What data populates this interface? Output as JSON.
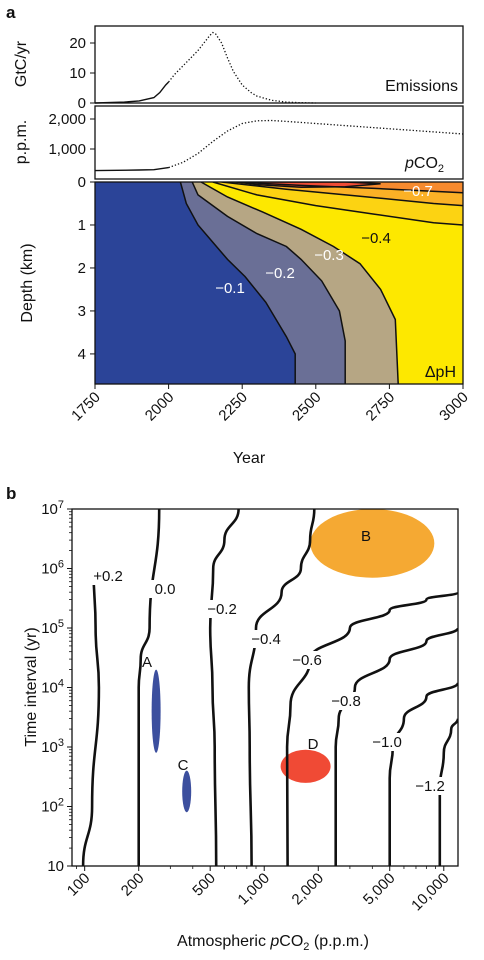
{
  "panel_a": {
    "letter": "a",
    "emissions": {
      "ylabel": "GtC/yr",
      "yticks": [
        "0",
        "10",
        "20"
      ],
      "label": "Emissions"
    },
    "pco2": {
      "ylabel": "p.p.m.",
      "yticks": [
        "1,000",
        "2,000"
      ],
      "label_italic": "p",
      "label_rest": "CO",
      "label_sub": "2"
    },
    "depth": {
      "ylabel": "Depth (km)",
      "yticks": [
        "0",
        "1",
        "2",
        "3",
        "4"
      ],
      "label": "ΔpH",
      "contour_labels": [
        "−0.7",
        "−0.4",
        "−0.3",
        "−0.2",
        "−0.1"
      ]
    },
    "xticks": [
      "1750",
      "2000",
      "2250",
      "2500",
      "2750",
      "3000"
    ],
    "xlabel": "Year"
  },
  "panel_b": {
    "letter": "b",
    "ylabel": "Time interval (yr)",
    "ytick_base": "10",
    "ytick_exponents": [
      "",
      "2",
      "3",
      "4",
      "5",
      "6",
      "7"
    ],
    "xticks": [
      "100",
      "200",
      "500",
      "1,000",
      "2,000",
      "5,000",
      "10,000"
    ],
    "xlabel_prefix": "Atmospheric ",
    "xlabel_italic": "p",
    "xlabel_rest": "CO",
    "xlabel_sub": "2",
    "xlabel_suffix": " (p.p.m.)",
    "contour_labels": [
      "+0.2",
      "0.0",
      "−0.2",
      "−0.4",
      "−0.6",
      "−0.8",
      "−1.0",
      "−1.2"
    ],
    "regions": [
      {
        "name": "A",
        "color": "#3c4f9e"
      },
      {
        "name": "B",
        "color": "#f5a933"
      },
      {
        "name": "C",
        "color": "#3c4f9e"
      },
      {
        "name": "D",
        "color": "#f04a35"
      }
    ]
  },
  "colors": {
    "dpH_lt_0_1": "#2b4498",
    "dpH_0_1_0_2": "#6a6f96",
    "dpH_0_2_0_3": "#b6a684",
    "dpH_0_3_0_4": "#fde800",
    "dpH_0_4_0_5": "#fcd312",
    "dpH_0_5_0_6": "#fbb126",
    "dpH_0_6_0_7": "#f68a2f",
    "dpH_gt_0_7": "#ee4c35"
  },
  "chart_data": [
    {
      "type": "line",
      "title": "",
      "xlabel": "",
      "ylabel": "GtC/yr",
      "xlim": [
        1750,
        3000
      ],
      "ylim": [
        0,
        25
      ],
      "series": [
        {
          "name": "Emissions",
          "x": [
            1750,
            1850,
            1900,
            1950,
            1970,
            1990,
            2000,
            2020,
            2040,
            2060,
            2080,
            2100,
            2120,
            2140,
            2150,
            2160,
            2180,
            2200,
            2220,
            2250,
            2280,
            2300,
            2350,
            2400,
            2450,
            2500
          ],
          "y": [
            0,
            0.3,
            0.7,
            1.8,
            3.5,
            6,
            7,
            9.5,
            11.5,
            13.5,
            15.5,
            17.5,
            20,
            22.5,
            23.5,
            23,
            20,
            15,
            10.5,
            6,
            3.5,
            2.3,
            0.9,
            0.3,
            0.1,
            0
          ]
        }
      ]
    },
    {
      "type": "line",
      "title": "",
      "xlabel": "",
      "ylabel": "p.p.m.",
      "xlim": [
        1750,
        3000
      ],
      "ylim": [
        0,
        2500
      ],
      "series": [
        {
          "name": "pCO2",
          "x": [
            1750,
            1900,
            1950,
            2000,
            2050,
            2100,
            2150,
            2200,
            2250,
            2300,
            2350,
            2400,
            2500,
            2600,
            2700,
            2800,
            2900,
            3000
          ],
          "y": [
            280,
            300,
            310,
            380,
            560,
            850,
            1250,
            1600,
            1850,
            1940,
            1950,
            1920,
            1850,
            1780,
            1710,
            1640,
            1570,
            1500
          ]
        }
      ]
    },
    {
      "type": "heatmap",
      "title": "",
      "xlabel": "Year",
      "ylabel": "Depth (km)",
      "xlim": [
        1750,
        3000
      ],
      "ylim": [
        4.7,
        0
      ],
      "levels": [
        -0.1,
        -0.2,
        -0.3,
        -0.4,
        -0.5,
        -0.6,
        -0.7
      ],
      "contours": [
        {
          "level": -0.1,
          "x": [
            2040,
            2060,
            2100,
            2150,
            2200,
            2260,
            2330,
            2400,
            2430,
            2430
          ],
          "depth": [
            0,
            0.5,
            1.0,
            1.4,
            1.8,
            2.2,
            2.8,
            3.6,
            4.0,
            4.7
          ]
        },
        {
          "level": -0.2,
          "x": [
            2080,
            2100,
            2200,
            2300,
            2400,
            2450,
            2520,
            2580,
            2600,
            2600
          ],
          "depth": [
            0,
            0.3,
            0.8,
            1.2,
            1.5,
            1.8,
            2.3,
            3.0,
            3.7,
            4.7
          ]
        },
        {
          "level": -0.3,
          "x": [
            2110,
            2200,
            2320,
            2450,
            2560,
            2650,
            2720,
            2770,
            2780
          ],
          "depth": [
            0,
            0.35,
            0.7,
            1.1,
            1.5,
            1.9,
            2.5,
            3.2,
            4.7
          ]
        },
        {
          "level": -0.4,
          "x": [
            2150,
            2300,
            2500,
            2700,
            2900,
            3000
          ],
          "depth": [
            0,
            0.3,
            0.55,
            0.75,
            0.95,
            1.0
          ]
        },
        {
          "level": -0.5,
          "x": [
            2180,
            2400,
            2650,
            2900,
            3000
          ],
          "depth": [
            0,
            0.17,
            0.33,
            0.5,
            0.55
          ]
        },
        {
          "level": -0.6,
          "x": [
            2220,
            2450,
            2700,
            3000
          ],
          "depth": [
            0,
            0.08,
            0.15,
            0.25
          ]
        },
        {
          "level": -0.7,
          "x": [
            2230,
            2300,
            2450,
            2600,
            2720,
            2600,
            2450,
            2300,
            2230
          ],
          "depth": [
            0,
            0.06,
            0.12,
            0.11,
            0.04,
            0.0,
            0.0,
            0.0,
            0.0
          ]
        }
      ]
    },
    {
      "type": "line",
      "title": "",
      "xlabel": "Atmospheric pCO2 (p.p.m.)",
      "ylabel": "Time interval (yr)",
      "xscale": "log",
      "yscale": "log",
      "xlim": [
        85,
        12000
      ],
      "ylim": [
        10,
        10000000
      ],
      "series": [
        {
          "name": "+0.2",
          "x": [
            98,
            110,
            120,
            115,
            112
          ],
          "y": [
            10,
            100,
            10000,
            100000,
            1000000
          ]
        },
        {
          "name": "0.0",
          "x": [
            200,
            200,
            205,
            230,
            260
          ],
          "y": [
            10,
            10000,
            30000,
            100000,
            10000000
          ]
        },
        {
          "name": "−0.2",
          "x": [
            540,
            530,
            515,
            500,
            520,
            600,
            720
          ],
          "y": [
            10,
            1000,
            10000,
            100000,
            1000000,
            3000000,
            10000000
          ]
        },
        {
          "name": "−0.4",
          "x": [
            850,
            830,
            820,
            900,
            1250,
            1600,
            1800,
            1900
          ],
          "y": [
            10,
            1000,
            10000,
            100000,
            400000,
            1000000,
            3000000,
            10000000
          ]
        },
        {
          "name": "−0.6",
          "x": [
            1350,
            1340,
            1400,
            1800,
            3000,
            5000,
            8000,
            12000
          ],
          "y": [
            10,
            1000,
            5000,
            30000,
            100000,
            200000,
            300000,
            400000
          ]
        },
        {
          "name": "−0.8",
          "x": [
            2500,
            2500,
            2600,
            3200,
            5000,
            8000,
            12000
          ],
          "y": [
            10,
            1000,
            3000,
            10000,
            30000,
            60000,
            100000
          ]
        },
        {
          "name": "−1.0",
          "x": [
            5000,
            5000,
            5200,
            6000,
            8000,
            12000
          ],
          "y": [
            10,
            300,
            1000,
            3000,
            7000,
            12000
          ]
        },
        {
          "name": "−1.2",
          "x": [
            9500,
            9500,
            10000,
            11000,
            12000
          ],
          "y": [
            10,
            200,
            800,
            2000,
            3000
          ]
        }
      ],
      "regions": [
        {
          "name": "A",
          "x_center": 250,
          "y_range": [
            800,
            20000
          ]
        },
        {
          "name": "B",
          "x_center": 4000,
          "y_range": [
            700000,
            10000000
          ]
        },
        {
          "name": "C",
          "x_center": 370,
          "y_range": [
            80,
            400
          ]
        },
        {
          "name": "D",
          "x_center": 1700,
          "y_range": [
            250,
            900
          ]
        }
      ]
    }
  ]
}
